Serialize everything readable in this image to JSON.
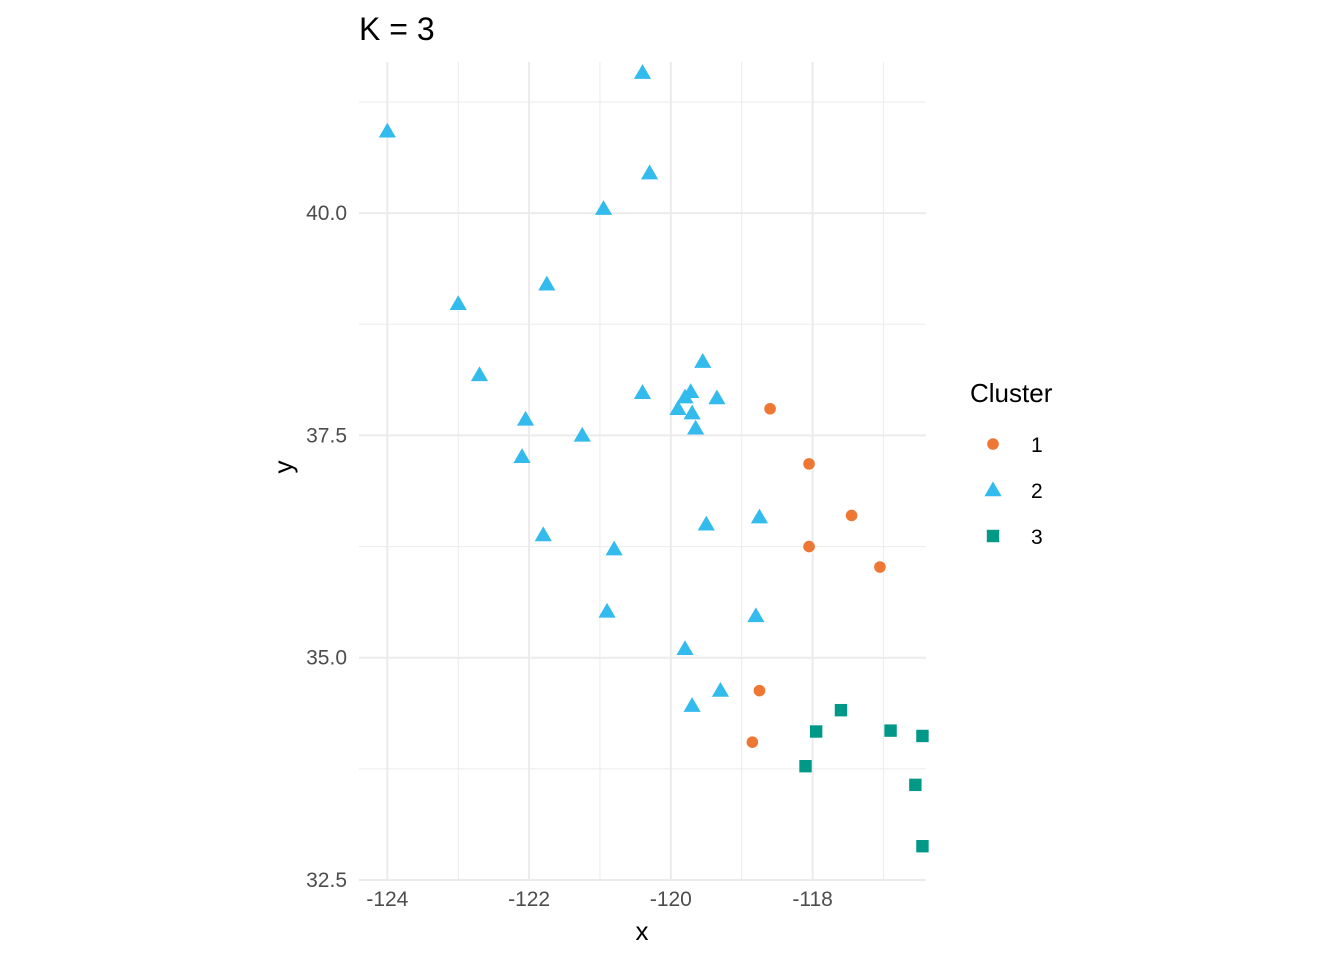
{
  "chart_data": {
    "type": "scatter",
    "title": "K = 3",
    "xlabel": "x",
    "ylabel": "y",
    "xlim": [
      -124.4,
      -116.4
    ],
    "ylim": [
      32.5,
      41.7
    ],
    "x_ticks": [
      -124,
      -122,
      -120,
      -118
    ],
    "x_tick_labels": [
      "-124",
      "-122",
      "-120",
      "-118"
    ],
    "y_ticks": [
      32.5,
      35.0,
      37.5,
      40.0
    ],
    "y_tick_labels": [
      "32.5",
      "35.0",
      "37.5",
      "40.0"
    ],
    "grid": true,
    "legend": {
      "title": "Cluster",
      "position": "right"
    },
    "series": [
      {
        "name": "1",
        "shape": "circle",
        "color": "#ee7733",
        "points": [
          [
            -118.6,
            37.8
          ],
          [
            -118.05,
            37.18
          ],
          [
            -117.45,
            36.6
          ],
          [
            -118.05,
            36.25
          ],
          [
            -117.05,
            36.02
          ],
          [
            -118.75,
            34.63
          ],
          [
            -118.85,
            34.05
          ]
        ]
      },
      {
        "name": "2",
        "shape": "triangle",
        "color": "#33bbee",
        "points": [
          [
            -120.4,
            41.58
          ],
          [
            -124.0,
            40.92
          ],
          [
            -120.3,
            40.45
          ],
          [
            -120.95,
            40.05
          ],
          [
            -121.75,
            39.2
          ],
          [
            -123.0,
            38.98
          ],
          [
            -122.7,
            38.18
          ],
          [
            -119.55,
            38.33
          ],
          [
            -120.4,
            37.98
          ],
          [
            -119.72,
            37.99
          ],
          [
            -119.8,
            37.93
          ],
          [
            -119.35,
            37.92
          ],
          [
            -119.9,
            37.8
          ],
          [
            -119.7,
            37.75
          ],
          [
            -119.65,
            37.58
          ],
          [
            -122.05,
            37.68
          ],
          [
            -121.25,
            37.5
          ],
          [
            -122.1,
            37.26
          ],
          [
            -118.75,
            36.58
          ],
          [
            -119.5,
            36.5
          ],
          [
            -121.8,
            36.38
          ],
          [
            -120.8,
            36.22
          ],
          [
            -120.9,
            35.52
          ],
          [
            -118.8,
            35.47
          ],
          [
            -119.8,
            35.1
          ],
          [
            -119.3,
            34.63
          ],
          [
            -119.7,
            34.46
          ]
        ]
      },
      {
        "name": "3",
        "shape": "square",
        "color": "#009988",
        "points": [
          [
            -117.6,
            34.41
          ],
          [
            -117.95,
            34.17
          ],
          [
            -116.9,
            34.18
          ],
          [
            -116.45,
            34.12
          ],
          [
            -118.1,
            33.78
          ],
          [
            -116.55,
            33.57
          ],
          [
            -116.45,
            32.88
          ]
        ]
      }
    ]
  }
}
